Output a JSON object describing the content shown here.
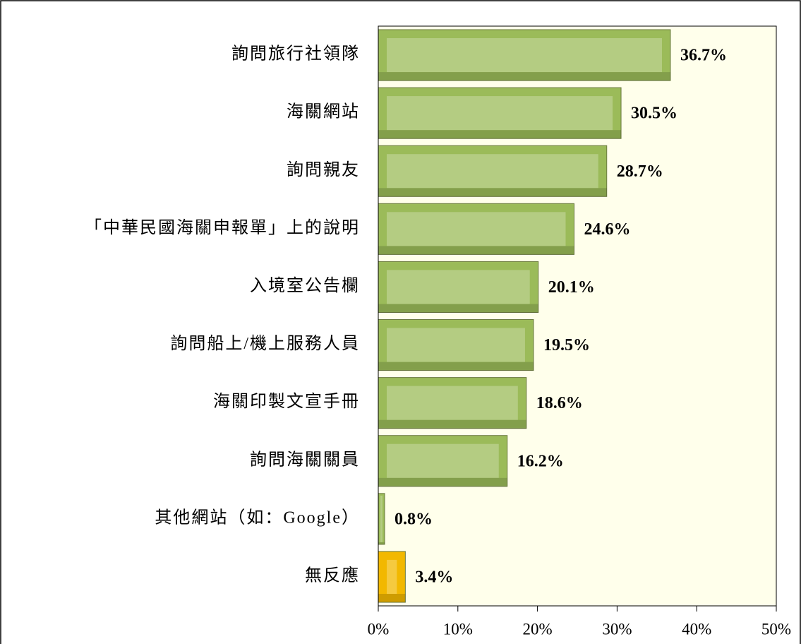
{
  "chart_data": {
    "type": "barh",
    "categories": [
      "詢問旅行社領隊",
      "海關網站",
      "詢問親友",
      "「中華民國海關申報單」上的說明",
      "入境室公告欄",
      "詢問船上/機上服務人員",
      "海關印製文宣手冊",
      "詢問海關關員",
      "其他網站（如：Google）",
      "無反應"
    ],
    "values": [
      36.7,
      30.5,
      28.7,
      24.6,
      20.1,
      19.5,
      18.6,
      16.2,
      0.8,
      3.4
    ],
    "value_labels": [
      "36.7%",
      "30.5%",
      "28.7%",
      "24.6%",
      "20.1%",
      "19.5%",
      "18.6%",
      "16.2%",
      "0.8%",
      "3.4%"
    ],
    "colors": [
      "#9bbb59",
      "#9bbb59",
      "#9bbb59",
      "#9bbb59",
      "#9bbb59",
      "#9bbb59",
      "#9bbb59",
      "#9bbb59",
      "#9bbb59",
      "#f2b800"
    ],
    "xlim": [
      0,
      50
    ],
    "xticks": [
      {
        "value": 0,
        "label": "0%"
      },
      {
        "value": 10,
        "label": "10%"
      },
      {
        "value": 20,
        "label": "20%"
      },
      {
        "value": 30,
        "label": "30%"
      },
      {
        "value": 40,
        "label": "40%"
      },
      {
        "value": 50,
        "label": "50%"
      }
    ]
  }
}
